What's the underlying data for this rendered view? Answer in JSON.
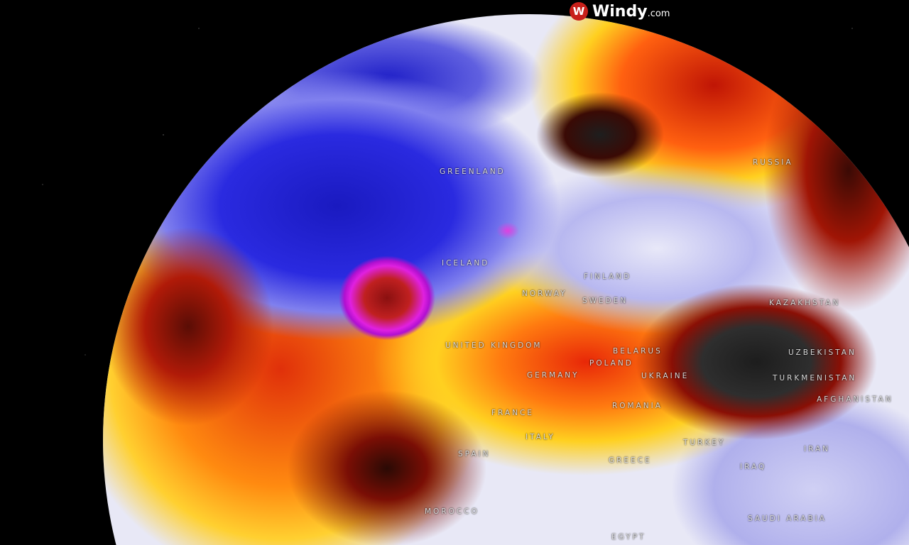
{
  "brand": {
    "name": "Windy",
    "suffix": ".com",
    "logo_icon": "windy-logo-icon"
  },
  "layer_colors": {
    "cold": "#2a2ae0",
    "extreme_cold": "#e020e0",
    "warm": "#ff8a10",
    "hot": "#c01505",
    "extreme_hot": "#2e2e2e"
  },
  "labels": {
    "greenland": "GREENLAND",
    "iceland": "ICELAND",
    "russia": "RUSSIA",
    "finland": "FINLAND",
    "norway": "NORWAY",
    "sweden": "SWEDEN",
    "united_kingdom": "UNITED KINGDOM",
    "belarus": "BELARUS",
    "poland": "POLAND",
    "germany": "GERMANY",
    "ukraine": "UKRAINE",
    "kazakhstan": "KAZAKHSTAN",
    "uzbekistan": "UZBEKISTAN",
    "turkmenistan": "TURKMENISTAN",
    "afghanistan": "AFGHANISTAN",
    "romania": "ROMANIA",
    "france": "FRANCE",
    "italy": "ITALY",
    "turkey": "TURKEY",
    "greece": "GREECE",
    "spain": "SPAIN",
    "iran": "IRAN",
    "iraq": "IRAQ",
    "morocco": "MOROCCO",
    "saudi_arabia": "SAUDI ARABIA",
    "egypt": "EGYPT"
  }
}
